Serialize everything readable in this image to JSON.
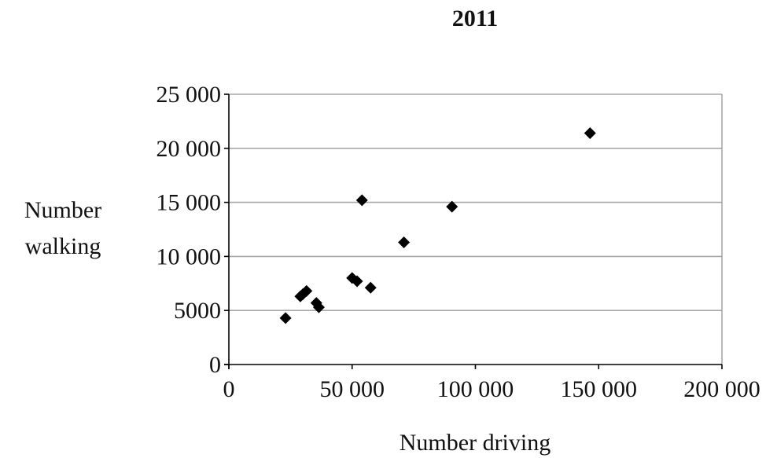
{
  "chart_data": {
    "type": "scatter",
    "title": "2011",
    "xlabel": "Number driving",
    "ylabel_lines": [
      "Number",
      "walking"
    ],
    "xlim": [
      0,
      200000
    ],
    "ylim": [
      0,
      25000
    ],
    "xticks": [
      0,
      50000,
      100000,
      150000,
      200000
    ],
    "xtick_labels": [
      "0",
      "50 000",
      "100 000",
      "150 000",
      "200 000"
    ],
    "yticks": [
      0,
      5000,
      10000,
      15000,
      20000,
      25000
    ],
    "ytick_labels": [
      "0",
      "5000",
      "10 000",
      "15 000",
      "20 000",
      "25 000"
    ],
    "grid": "horizontal",
    "marker": "diamond",
    "marker_color": "#000000",
    "points": [
      {
        "x": 23000,
        "y": 4300
      },
      {
        "x": 29000,
        "y": 6300
      },
      {
        "x": 30000,
        "y": 6500
      },
      {
        "x": 31500,
        "y": 6800
      },
      {
        "x": 35500,
        "y": 5700
      },
      {
        "x": 36500,
        "y": 5300
      },
      {
        "x": 50000,
        "y": 8000
      },
      {
        "x": 52000,
        "y": 7700
      },
      {
        "x": 54000,
        "y": 15200
      },
      {
        "x": 57500,
        "y": 7100
      },
      {
        "x": 71000,
        "y": 11300
      },
      {
        "x": 90500,
        "y": 14600
      },
      {
        "x": 146500,
        "y": 21400
      }
    ]
  }
}
